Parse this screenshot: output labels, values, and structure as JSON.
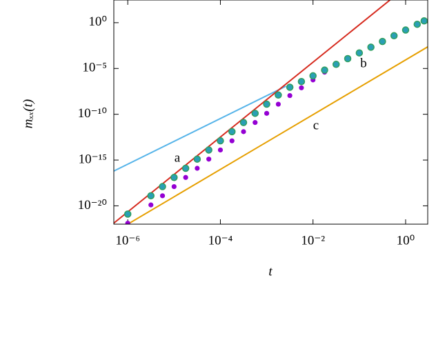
{
  "chart_data": {
    "type": "scatter",
    "x_label": "t",
    "y_label": "mₓₓ(t)",
    "xscale": "log",
    "yscale": "log",
    "xlim": [
      5e-07,
      3
    ],
    "ylim": [
      1e-22,
      300
    ],
    "xticks": [
      {
        "value": 1e-06,
        "label": "10⁻⁶"
      },
      {
        "value": 0.0001,
        "label": "10⁻⁴"
      },
      {
        "value": 0.01,
        "label": "10⁻²"
      },
      {
        "value": 1,
        "label": "10⁰"
      }
    ],
    "yticks": [
      {
        "value": 1e-20,
        "label": "10⁻²⁰"
      },
      {
        "value": 1e-15,
        "label": "10⁻¹⁵"
      },
      {
        "value": 1e-10,
        "label": "10⁻¹⁰"
      },
      {
        "value": 1e-05,
        "label": "10⁻⁵"
      },
      {
        "value": 1,
        "label": "10⁰"
      }
    ],
    "series": [
      {
        "style": "line",
        "color": "#56b4e9",
        "x": [
          5e-07,
          0.0026
        ],
        "y": [
          6.3e-17,
          1.15e-07
        ]
      },
      {
        "style": "line",
        "color": "#d62a1e",
        "x": [
          5e-07,
          0.46
        ],
        "y": [
          1.3e-22,
          300
        ]
      },
      {
        "style": "line",
        "color": "#e69f00",
        "x": [
          1e-06,
          3
        ],
        "y": [
          1e-22,
          0.0023
        ]
      },
      {
        "style": "dots",
        "color": "#9400d3",
        "x": [
          1e-06,
          3.16e-06,
          5.62e-06,
          1e-05,
          1.78e-05,
          3.16e-05,
          5.62e-05,
          0.0001,
          0.000178,
          0.000316,
          0.000562,
          0.001,
          0.00178,
          0.00316,
          0.00562,
          0.01,
          0.0178,
          0.0316,
          0.0562,
          0.1,
          0.178,
          0.316,
          0.562,
          1,
          1.78,
          2.51
        ],
        "y": [
          1.26e-22,
          1.26e-20,
          1.26e-19,
          1.26e-18,
          1.26e-17,
          1.26e-16,
          1.26e-15,
          1.26e-14,
          1.26e-13,
          1.26e-12,
          1.26e-11,
          1.26e-10,
          1.26e-09,
          1.1e-08,
          7.76e-08,
          5.62e-07,
          3.98e-06,
          2.82e-05,
          0.000119,
          0.000501,
          0.00211,
          0.00891,
          0.0376,
          0.158,
          0.668,
          1.58
        ]
      },
      {
        "style": "rings",
        "color": "#2a9fb5",
        "edge": "#2e9e5e",
        "x": [
          1e-06,
          3.16e-06,
          5.62e-06,
          1e-05,
          1.78e-05,
          3.16e-05,
          5.62e-05,
          0.0001,
          0.000178,
          0.000316,
          0.000562,
          0.001,
          0.00178,
          0.00316,
          0.00562,
          0.01,
          0.0178,
          0.0316,
          0.0562,
          0.1,
          0.178,
          0.316,
          0.562,
          1,
          1.78,
          2.51
        ],
        "y": [
          1.26e-21,
          1.26e-19,
          1.26e-18,
          1.26e-17,
          1.26e-16,
          1.26e-15,
          1.26e-14,
          1.26e-13,
          1.26e-12,
          1.26e-11,
          1.26e-10,
          1.26e-09,
          1.26e-08,
          8.9e-08,
          3.76e-07,
          1.58e-06,
          6.68e-06,
          2.82e-05,
          0.000119,
          0.000501,
          0.00211,
          0.00891,
          0.0376,
          0.158,
          0.668,
          1.58
        ]
      }
    ],
    "annotations": [
      "a",
      "b",
      "c"
    ]
  }
}
